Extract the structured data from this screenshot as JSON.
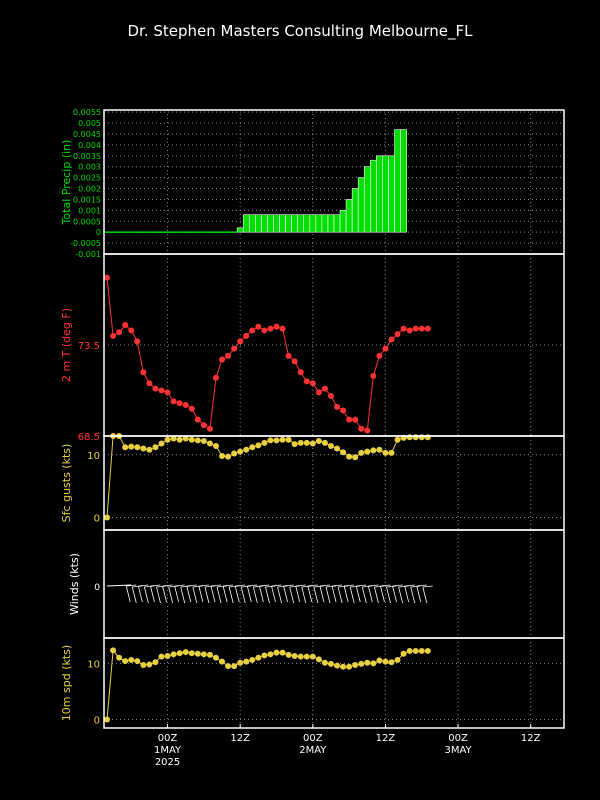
{
  "title": "Dr. Stephen Masters Consulting   Melbourne_FL",
  "colors": {
    "precip": "#00dd00",
    "temp": "#ff3333",
    "gusts": "#e8d040",
    "winds": "#ffffff",
    "speed": "#e8d040",
    "frame": "#ffffff",
    "grid": "#8a8a8a"
  },
  "x_axis": {
    "ticks": [
      {
        "t": 7,
        "line1": "00Z",
        "line2": "1MAY",
        "line3": "2025"
      },
      {
        "t": 19,
        "line1": "12Z",
        "line2": "",
        "line3": ""
      },
      {
        "t": 31,
        "line1": "00Z",
        "line2": "2MAY",
        "line3": ""
      },
      {
        "t": 43,
        "line1": "12Z",
        "line2": "",
        "line3": ""
      },
      {
        "t": 55,
        "line1": "00Z",
        "line2": "3MAY",
        "line3": ""
      },
      {
        "t": 67,
        "line1": "12Z",
        "line2": "",
        "line3": ""
      }
    ],
    "range": [
      -3.5,
      72.5
    ]
  },
  "chart_data": [
    {
      "type": "bar",
      "ylabel": "Total Precip (in)",
      "ylim": [
        -0.001,
        0.0056
      ],
      "yticks": [
        "-0.001",
        "-0.0005",
        "0",
        "0.0005",
        "0.001",
        "0.0015",
        "0.002",
        "0.0025",
        "0.003",
        "0.0035",
        "0.004",
        "0.0045",
        "0.005",
        "0.0055"
      ],
      "x_hours": [
        -3,
        -2,
        -1,
        0,
        1,
        2,
        3,
        4,
        5,
        6,
        7,
        8,
        9,
        10,
        11,
        12,
        13,
        14,
        15,
        16,
        17,
        18,
        19,
        20,
        21,
        22,
        23,
        24,
        25,
        26,
        27,
        28,
        29,
        30,
        31,
        32,
        33,
        34,
        35,
        36,
        37,
        38,
        39,
        40,
        41,
        42,
        43,
        44,
        45,
        46
      ],
      "values": [
        0,
        0,
        0,
        0,
        0,
        0,
        0,
        0,
        0,
        0,
        0,
        0,
        0,
        0,
        0,
        0,
        0,
        0,
        0,
        0,
        0,
        0,
        0.0002,
        0.0008,
        0.0008,
        0.0008,
        0.0008,
        0.0008,
        0.0008,
        0.0008,
        0.0008,
        0.0008,
        0.0008,
        0.0008,
        0.0008,
        0.0008,
        0.0008,
        0.0008,
        0.0008,
        0.001,
        0.0015,
        0.002,
        0.0025,
        0.003,
        0.0033,
        0.0035,
        0.0035,
        0.0035,
        0.0047,
        0.0047
      ]
    },
    {
      "type": "line",
      "ylabel": "2 m T (deg F)",
      "ylim": [
        68.5,
        78.5
      ],
      "yticks": [
        "73.5",
        "68.5"
      ],
      "x_hours": [
        -3,
        -2,
        -1,
        0,
        1,
        2,
        3,
        4,
        5,
        6,
        7,
        8,
        9,
        10,
        11,
        12,
        13,
        14,
        15,
        16,
        17,
        18,
        19,
        20,
        21,
        22,
        23,
        24,
        25,
        26,
        27,
        28,
        29,
        30,
        31,
        32,
        33,
        34,
        35,
        36,
        37,
        38,
        39,
        40,
        41,
        42,
        43,
        44,
        45,
        46,
        47,
        48,
        49,
        50
      ],
      "values": [
        77.2,
        74.0,
        74.2,
        74.6,
        74.3,
        73.7,
        72.0,
        71.4,
        71.1,
        71.0,
        70.9,
        70.4,
        70.3,
        70.2,
        70.0,
        69.4,
        69.1,
        68.9,
        71.7,
        72.7,
        72.9,
        73.3,
        73.7,
        74.0,
        74.3,
        74.5,
        74.3,
        74.4,
        74.5,
        74.4,
        72.9,
        72.6,
        72.0,
        71.5,
        71.4,
        70.9,
        71.1,
        70.7,
        70.1,
        69.9,
        69.4,
        69.4,
        68.9,
        68.8,
        71.8,
        72.9,
        73.3,
        73.8,
        74.1,
        74.4,
        74.3,
        74.4,
        74.4,
        74.4
      ]
    },
    {
      "type": "line",
      "ylabel": "Sfc gusts (kts)",
      "ylim": [
        -2,
        13
      ],
      "yticks": [
        "10",
        "0"
      ],
      "x_hours": [
        -3,
        -2,
        -1,
        0,
        1,
        2,
        3,
        4,
        5,
        6,
        7,
        8,
        9,
        10,
        11,
        12,
        13,
        14,
        15,
        16,
        17,
        18,
        19,
        20,
        21,
        22,
        23,
        24,
        25,
        26,
        27,
        28,
        29,
        30,
        31,
        32,
        33,
        34,
        35,
        36,
        37,
        38,
        39,
        40,
        41,
        42,
        43,
        44,
        45,
        46,
        47,
        48,
        49,
        50
      ],
      "values": [
        0,
        13.5,
        13.2,
        11.2,
        11.3,
        11.2,
        11.0,
        10.8,
        11.2,
        11.8,
        12.4,
        12.6,
        12.4,
        12.6,
        12.4,
        12.3,
        12.2,
        11.8,
        11.4,
        9.8,
        9.7,
        10.2,
        10.5,
        10.8,
        11.2,
        11.5,
        11.9,
        12.3,
        12.3,
        12.4,
        12.4,
        11.7,
        11.9,
        11.9,
        11.8,
        12.2,
        11.9,
        11.4,
        11.0,
        10.4,
        9.7,
        9.6,
        10.3,
        10.5,
        10.7,
        10.8,
        10.3,
        10.3,
        12.4,
        12.7,
        12.8,
        12.8,
        12.8,
        12.8
      ]
    },
    {
      "type": "line",
      "ylabel": "Winds (kts)",
      "zero_label": "0"
    },
    {
      "type": "line",
      "ylabel": "10m spd (kts)",
      "ylim": [
        -1.5,
        14.5
      ],
      "yticks": [
        "10",
        "0"
      ],
      "x_hours": [
        -3,
        -2,
        -1,
        0,
        1,
        2,
        3,
        4,
        5,
        6,
        7,
        8,
        9,
        10,
        11,
        12,
        13,
        14,
        15,
        16,
        17,
        18,
        19,
        20,
        21,
        22,
        23,
        24,
        25,
        26,
        27,
        28,
        29,
        30,
        31,
        32,
        33,
        34,
        35,
        36,
        37,
        38,
        39,
        40,
        41,
        42,
        43,
        44,
        45,
        46,
        47,
        48,
        49,
        50
      ],
      "values": [
        0,
        12.3,
        11.0,
        10.4,
        10.6,
        10.4,
        9.7,
        9.8,
        10.2,
        11.2,
        11.3,
        11.6,
        11.8,
        12.0,
        11.8,
        11.7,
        11.6,
        11.5,
        11.0,
        10.3,
        9.5,
        9.5,
        10.1,
        10.3,
        10.6,
        11.0,
        11.4,
        11.6,
        11.9,
        11.9,
        11.5,
        11.3,
        11.2,
        11.2,
        11.2,
        10.7,
        10.1,
        9.9,
        9.6,
        9.4,
        9.4,
        9.7,
        9.9,
        10.1,
        10.0,
        10.5,
        10.3,
        10.2,
        10.6,
        11.7,
        12.2,
        12.2,
        12.2,
        12.2
      ]
    }
  ]
}
